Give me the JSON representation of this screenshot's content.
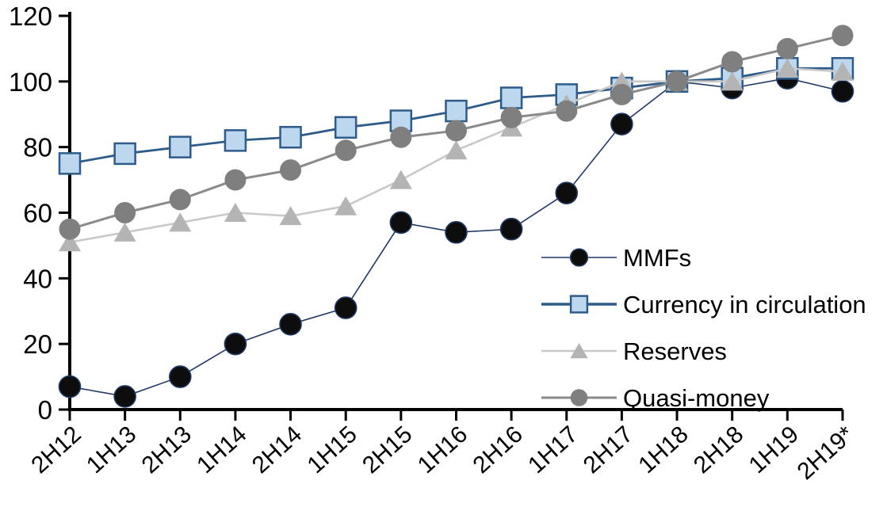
{
  "chart_data": {
    "type": "line",
    "title": "",
    "xlabel": "",
    "ylabel": "",
    "grid": false,
    "legend_position": "inside-right",
    "categories": [
      "2H12",
      "1H13",
      "2H13",
      "1H14",
      "2H14",
      "1H15",
      "2H15",
      "1H16",
      "2H16",
      "1H17",
      "2H17",
      "1H18",
      "2H18",
      "1H19",
      "2H19*"
    ],
    "series": [
      {
        "name": "MMFs",
        "marker": "circle",
        "marker_fill": "#0d0d0d",
        "marker_stroke": "#1f3864",
        "line_color": "#1f3864",
        "line_width": 1.6,
        "values": [
          7,
          4,
          10,
          20,
          26,
          31,
          57,
          54,
          55,
          66,
          87,
          100,
          98,
          101,
          97
        ]
      },
      {
        "name": "Currency in circulation",
        "marker": "square",
        "marker_fill": "#bdd7ee",
        "marker_stroke": "#2e5c8a",
        "line_color": "#2e5c8a",
        "line_width": 2.8,
        "values": [
          75,
          78,
          80,
          82,
          83,
          86,
          88,
          91,
          95,
          96,
          98,
          100,
          101,
          104,
          104
        ]
      },
      {
        "name": "Reserves",
        "marker": "triangle",
        "marker_fill": "#b4b4b4",
        "marker_stroke": "none",
        "line_color": "#c9c9c9",
        "line_width": 2.6,
        "values": [
          51,
          54,
          57,
          60,
          59,
          62,
          70,
          79,
          86,
          93,
          100,
          100,
          100,
          104,
          103
        ]
      },
      {
        "name": "Quasi-money",
        "marker": "circle",
        "marker_fill": "#7f7f7f",
        "marker_stroke": "none",
        "line_color": "#8a8a8a",
        "line_width": 3,
        "values": [
          55,
          60,
          64,
          70,
          73,
          79,
          83,
          85,
          89,
          91,
          96,
          100,
          106,
          110,
          114
        ]
      }
    ],
    "y_axis": {
      "min": 0,
      "max": 120,
      "tick_step": 20,
      "ticks": [
        0,
        20,
        40,
        60,
        80,
        100,
        120
      ]
    },
    "x_axis": {
      "label_rotation_deg": -42
    },
    "axis_color": "#000000"
  }
}
